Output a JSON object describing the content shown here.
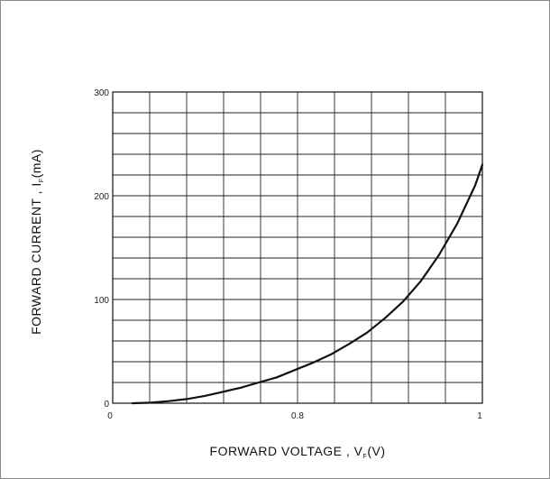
{
  "chart_data": {
    "type": "line",
    "xlabel": {
      "main": "FORWARD VOLTAGE , V",
      "sub": "F",
      "tail": "(V)"
    },
    "ylabel": {
      "main": "FORWARD CURRENT , I",
      "sub": "F",
      "tail": "(mA)"
    },
    "xlim": [
      0,
      1
    ],
    "ylim": [
      0,
      300
    ],
    "x_tick_labels": [
      "0",
      "0.8",
      "1"
    ],
    "y_tick_labels": [
      "0",
      "100",
      "200",
      "300"
    ],
    "grid": true,
    "grid_divisions": {
      "x": 10,
      "y": 15
    },
    "series": [
      {
        "color": "#111111",
        "points": [
          [
            0.0,
            0
          ],
          [
            0.05,
            0.5
          ],
          [
            0.1,
            2
          ],
          [
            0.15,
            4
          ],
          [
            0.2,
            7
          ],
          [
            0.25,
            11
          ],
          [
            0.3,
            15
          ],
          [
            0.35,
            20
          ],
          [
            0.4,
            25
          ],
          [
            0.45,
            32
          ],
          [
            0.5,
            39
          ],
          [
            0.55,
            47
          ],
          [
            0.6,
            57
          ],
          [
            0.65,
            68
          ],
          [
            0.7,
            82
          ],
          [
            0.75,
            98
          ],
          [
            0.8,
            118
          ],
          [
            0.85,
            143
          ],
          [
            0.9,
            173
          ],
          [
            0.95,
            210
          ],
          [
            0.97,
            230
          ]
        ]
      }
    ]
  }
}
